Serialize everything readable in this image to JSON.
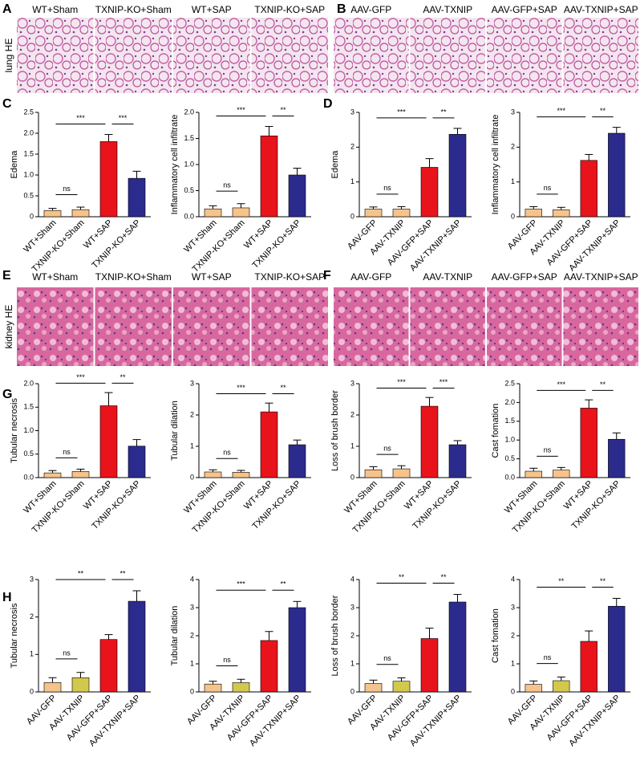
{
  "panel_labels": [
    "A",
    "B",
    "C",
    "D",
    "E",
    "F",
    "G",
    "H"
  ],
  "image_rows": [
    {
      "tissue": "lung HE",
      "groups": [
        [
          "WT+Sham",
          "TXNIP-KO+Sham",
          "WT+SAP",
          "TXNIP-KO+SAP"
        ],
        [
          "AAV-GFP",
          "AAV-TXNIP",
          "AAV-GFP+SAP",
          "AAV-TXNIP+SAP"
        ]
      ]
    },
    {
      "tissue": "kidney HE",
      "groups": [
        [
          "WT+Sham",
          "TXNIP-KO+Sham",
          "WT+SAP",
          "TXNIP-KO+SAP"
        ],
        [
          "AAV-GFP",
          "AAV-TXNIP",
          "AAV-GFP+SAP",
          "AAV-TXNIP+SAP"
        ]
      ]
    }
  ],
  "chart_data": [
    {
      "type": "bar",
      "ylabel": "Edema",
      "categories": [
        "WT+Sham",
        "TXNIP-KO+Sham",
        "WT+SAP",
        "TXNIP-KO+SAP"
      ],
      "values": [
        0.15,
        0.17,
        1.8,
        0.92
      ],
      "errors": [
        0.05,
        0.06,
        0.17,
        0.17
      ],
      "colors": [
        "#f6c38a",
        "#f6c38a",
        "#e8131b",
        "#2b2b8e"
      ],
      "ylim": [
        0,
        2.5
      ],
      "yticks": [
        0,
        0.5,
        {
          "value": 1,
          "label": "1.0"
        },
        1.5,
        {
          "value": 2,
          "label": "2.0"
        },
        2.5
      ],
      "annotations": [
        {
          "label": "ns",
          "from": 0,
          "to": 1
        },
        {
          "label": "***",
          "from": 0,
          "to": 2
        },
        {
          "label": "***",
          "from": 2,
          "to": 3
        }
      ]
    },
    {
      "type": "bar",
      "ylabel": "Inflammatory cell infiltrate",
      "categories": [
        "WT+Sham",
        "TXNIP-KO+Sham",
        "WT+SAP",
        "TXNIP-KO+SAP"
      ],
      "values": [
        0.15,
        0.17,
        1.55,
        0.8
      ],
      "errors": [
        0.06,
        0.08,
        0.18,
        0.13
      ],
      "colors": [
        "#f6c38a",
        "#f6c38a",
        "#e8131b",
        "#2b2b8e"
      ],
      "ylim": [
        0,
        2
      ],
      "yticks": [
        {
          "value": 0,
          "label": "0.0"
        },
        0.5,
        {
          "value": 1,
          "label": "1.0"
        },
        1.5,
        {
          "value": 2,
          "label": "2.0"
        }
      ],
      "annotations": [
        {
          "label": "ns",
          "from": 0,
          "to": 1
        },
        {
          "label": "***",
          "from": 0,
          "to": 2
        },
        {
          "label": "**",
          "from": 2,
          "to": 3
        }
      ]
    },
    {
      "type": "bar",
      "ylabel": "Edema",
      "categories": [
        "AAV-GFP",
        "AAV-TXNIP",
        "AAV-GFP+SAP",
        "AAV-TXNIP+SAP"
      ],
      "values": [
        0.22,
        0.22,
        1.42,
        2.37
      ],
      "errors": [
        0.06,
        0.07,
        0.25,
        0.17
      ],
      "colors": [
        "#f6c38a",
        "#f6c38a",
        "#e8131b",
        "#2b2b8e"
      ],
      "ylim": [
        0,
        3
      ],
      "yticks": [
        0,
        1,
        2,
        3
      ],
      "annotations": [
        {
          "label": "ns",
          "from": 0,
          "to": 1
        },
        {
          "label": "***",
          "from": 0,
          "to": 2
        },
        {
          "label": "**",
          "from": 2,
          "to": 3
        }
      ]
    },
    {
      "type": "bar",
      "ylabel": "Inflammatory cell infiltrate",
      "categories": [
        "AAV-GFP",
        "AAV-TXNIP",
        "AAV-GFP+SAP",
        "AAV-TXNIP+SAP"
      ],
      "values": [
        0.22,
        0.2,
        1.62,
        2.4
      ],
      "errors": [
        0.07,
        0.07,
        0.17,
        0.17
      ],
      "colors": [
        "#f6c38a",
        "#f6c38a",
        "#e8131b",
        "#2b2b8e"
      ],
      "ylim": [
        0,
        3
      ],
      "yticks": [
        0,
        1,
        2,
        3
      ],
      "annotations": [
        {
          "label": "ns",
          "from": 0,
          "to": 1
        },
        {
          "label": "***",
          "from": 0,
          "to": 2
        },
        {
          "label": "**",
          "from": 2,
          "to": 3
        }
      ]
    },
    {
      "type": "bar",
      "ylabel": "Tubular necrosis",
      "categories": [
        "WT+Sham",
        "TXNIP-KO+Sham",
        "WT+SAP",
        "TXNIP-KO+SAP"
      ],
      "values": [
        0.1,
        0.13,
        1.53,
        0.67
      ],
      "errors": [
        0.05,
        0.05,
        0.28,
        0.14
      ],
      "colors": [
        "#f6c38a",
        "#f6c38a",
        "#e8131b",
        "#2b2b8e"
      ],
      "ylim": [
        0,
        2
      ],
      "yticks": [
        {
          "value": 0,
          "label": "0.0"
        },
        0.5,
        {
          "value": 1,
          "label": "1.0"
        },
        1.5,
        {
          "value": 2,
          "label": "2.0"
        }
      ],
      "annotations": [
        {
          "label": "ns",
          "from": 0,
          "to": 1
        },
        {
          "label": "***",
          "from": 0,
          "to": 2
        },
        {
          "label": "**",
          "from": 2,
          "to": 3
        }
      ]
    },
    {
      "type": "bar",
      "ylabel": "Tubular dilation",
      "categories": [
        "WT+Sham",
        "TXNIP-KO+Sham",
        "WT+SAP",
        "TXNIP-KO+SAP"
      ],
      "values": [
        0.18,
        0.17,
        2.1,
        1.05
      ],
      "errors": [
        0.07,
        0.06,
        0.28,
        0.15
      ],
      "colors": [
        "#f6c38a",
        "#f6c38a",
        "#e8131b",
        "#2b2b8e"
      ],
      "ylim": [
        0,
        3
      ],
      "yticks": [
        0,
        1,
        2,
        3
      ],
      "annotations": [
        {
          "label": "ns",
          "from": 0,
          "to": 1
        },
        {
          "label": "***",
          "from": 0,
          "to": 2
        },
        {
          "label": "**",
          "from": 2,
          "to": 3
        }
      ]
    },
    {
      "type": "bar",
      "ylabel": "Loss of brush border",
      "categories": [
        "WT+Sham",
        "TXNIP-KO+Sham",
        "WT+SAP",
        "TXNIP-KO+SAP"
      ],
      "values": [
        0.25,
        0.28,
        2.28,
        1.05
      ],
      "errors": [
        0.1,
        0.1,
        0.28,
        0.13
      ],
      "colors": [
        "#f6c38a",
        "#f6c38a",
        "#e8131b",
        "#2b2b8e"
      ],
      "ylim": [
        0,
        3
      ],
      "yticks": [
        0,
        1,
        2,
        3
      ],
      "annotations": [
        {
          "label": "ns",
          "from": 0,
          "to": 1
        },
        {
          "label": "***",
          "from": 0,
          "to": 2
        },
        {
          "label": "***",
          "from": 2,
          "to": 3
        }
      ]
    },
    {
      "type": "bar",
      "ylabel": "Cast fomation",
      "categories": [
        "WT+Sham",
        "TXNIP-KO+Sham",
        "WT+SAP",
        "TXNIP-KO+SAP"
      ],
      "values": [
        0.17,
        0.2,
        1.85,
        1.02
      ],
      "errors": [
        0.08,
        0.07,
        0.22,
        0.17
      ],
      "colors": [
        "#f6c38a",
        "#f6c38a",
        "#e8131b",
        "#2b2b8e"
      ],
      "ylim": [
        0,
        2.5
      ],
      "yticks": [
        {
          "value": 0,
          "label": "0.0"
        },
        0.5,
        {
          "value": 1,
          "label": "1.0"
        },
        1.5,
        {
          "value": 2,
          "label": "2.0"
        },
        2.5
      ],
      "annotations": [
        {
          "label": "ns",
          "from": 0,
          "to": 1
        },
        {
          "label": "***",
          "from": 0,
          "to": 2
        },
        {
          "label": "**",
          "from": 2,
          "to": 3
        }
      ]
    },
    {
      "type": "bar",
      "ylabel": "Tubular necrosis",
      "categories": [
        "AAV-GFP",
        "AAV-TXNIP",
        "AAV-GFP+SAP",
        "AAV-TXNIP+SAP"
      ],
      "values": [
        0.25,
        0.38,
        1.4,
        2.42
      ],
      "errors": [
        0.13,
        0.14,
        0.13,
        0.28
      ],
      "colors": [
        "#f6c38a",
        "#d2c84e",
        "#e8131b",
        "#2b2b8e"
      ],
      "ylim": [
        0,
        3
      ],
      "yticks": [
        0,
        1,
        2,
        3
      ],
      "annotations": [
        {
          "label": "ns",
          "from": 0,
          "to": 1
        },
        {
          "label": "**",
          "from": 0,
          "to": 2
        },
        {
          "label": "**",
          "from": 2,
          "to": 3
        }
      ]
    },
    {
      "type": "bar",
      "ylabel": "Tubular dilation",
      "categories": [
        "AAV-GFP",
        "AAV-TXNIP",
        "AAV-GFP+SAP",
        "AAV-TXNIP+SAP"
      ],
      "values": [
        0.28,
        0.33,
        1.83,
        3.0
      ],
      "errors": [
        0.1,
        0.12,
        0.32,
        0.22
      ],
      "colors": [
        "#f6c38a",
        "#d2c84e",
        "#e8131b",
        "#2b2b8e"
      ],
      "ylim": [
        0,
        4
      ],
      "yticks": [
        0,
        1,
        2,
        3,
        4
      ],
      "annotations": [
        {
          "label": "ns",
          "from": 0,
          "to": 1
        },
        {
          "label": "***",
          "from": 0,
          "to": 2
        },
        {
          "label": "**",
          "from": 2,
          "to": 3
        }
      ]
    },
    {
      "type": "bar",
      "ylabel": "Loss of brush border",
      "categories": [
        "AAV-GFP",
        "AAV-TXNIP",
        "AAV-GFP+SAP",
        "AAV-TXNIP+SAP"
      ],
      "values": [
        0.3,
        0.38,
        1.9,
        3.2
      ],
      "errors": [
        0.12,
        0.12,
        0.37,
        0.27
      ],
      "colors": [
        "#f6c38a",
        "#d2c84e",
        "#e8131b",
        "#2b2b8e"
      ],
      "ylim": [
        0,
        4
      ],
      "yticks": [
        0,
        1,
        2,
        3,
        4
      ],
      "annotations": [
        {
          "label": "ns",
          "from": 0,
          "to": 1
        },
        {
          "label": "**",
          "from": 0,
          "to": 2
        },
        {
          "label": "**",
          "from": 2,
          "to": 3
        }
      ]
    },
    {
      "type": "bar",
      "ylabel": "Cast fomation",
      "categories": [
        "AAV-GFP",
        "AAV-TXNIP",
        "AAV-GFP+SAP",
        "AAV-TXNIP+SAP"
      ],
      "values": [
        0.27,
        0.4,
        1.8,
        3.05
      ],
      "errors": [
        0.12,
        0.13,
        0.37,
        0.28
      ],
      "colors": [
        "#f6c38a",
        "#d2c84e",
        "#e8131b",
        "#2b2b8e"
      ],
      "ylim": [
        0,
        4
      ],
      "yticks": [
        0,
        1,
        2,
        3,
        4
      ],
      "annotations": [
        {
          "label": "ns",
          "from": 0,
          "to": 1
        },
        {
          "label": "**",
          "from": 0,
          "to": 2
        },
        {
          "label": "**",
          "from": 2,
          "to": 3
        }
      ]
    }
  ]
}
